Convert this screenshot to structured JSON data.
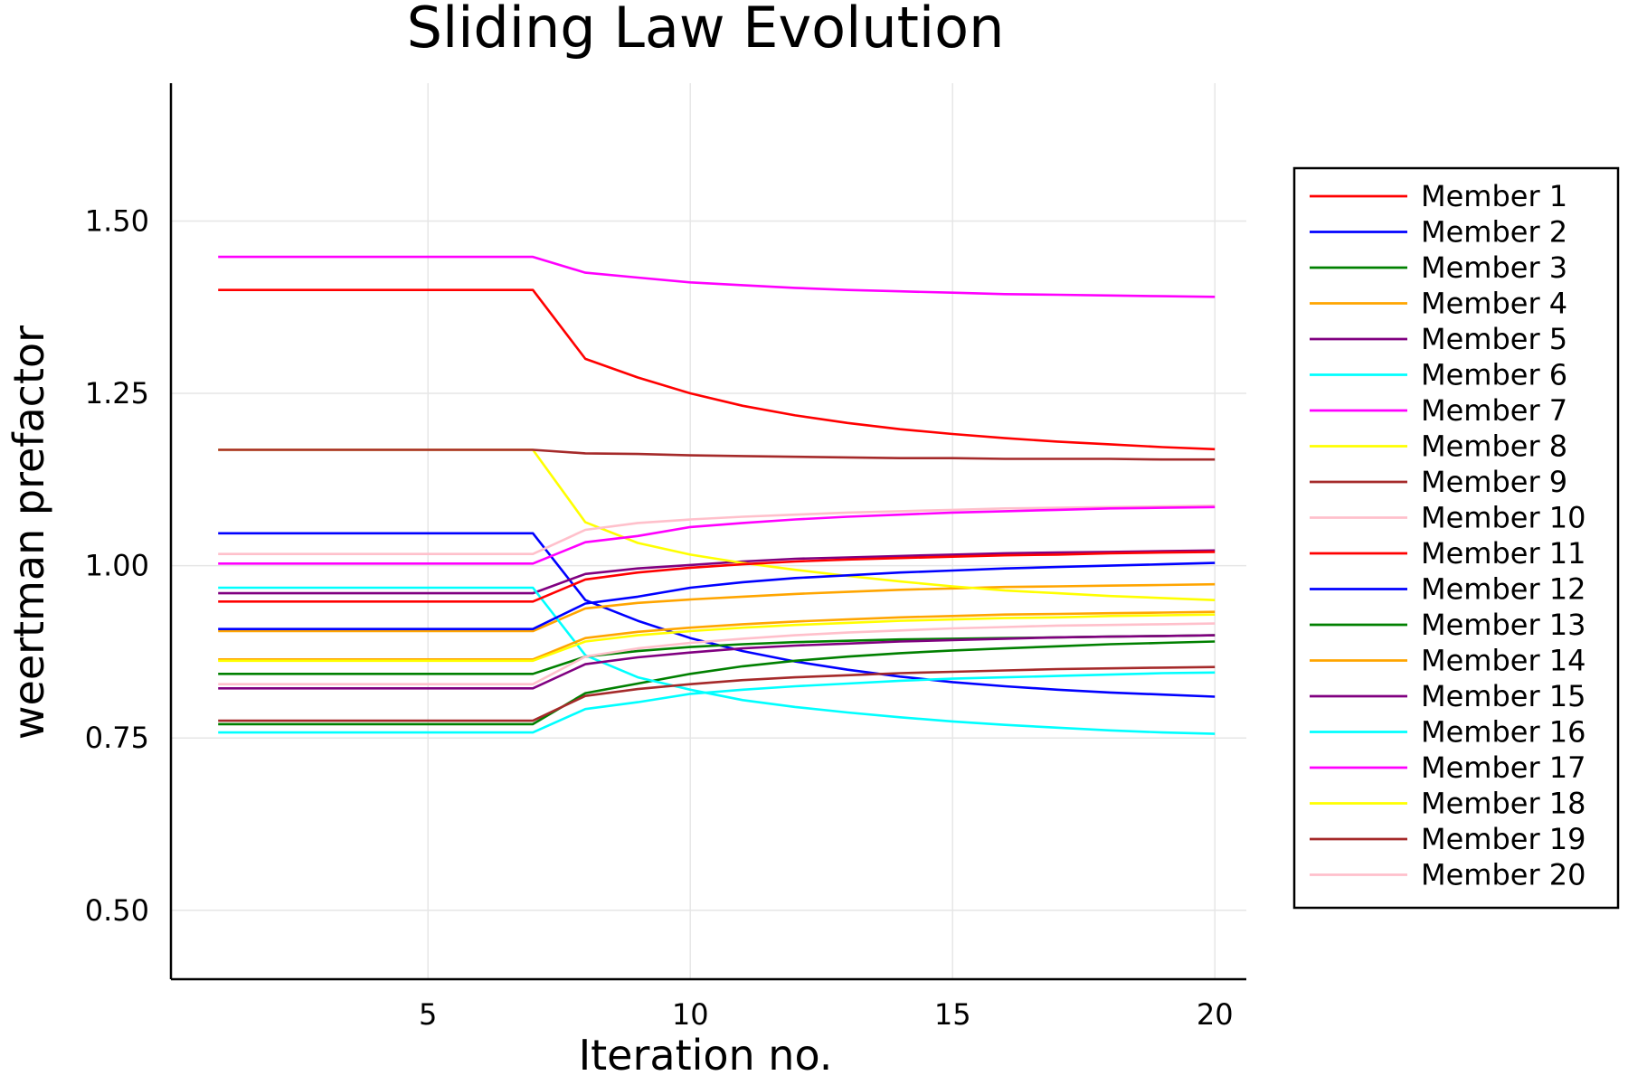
{
  "chart_data": {
    "type": "line",
    "title": "Sliding Law Evolution",
    "xlabel": "Iteration no.",
    "ylabel": "weertman prefactor",
    "xlim": [
      0.1,
      20.6
    ],
    "ylim": [
      0.4,
      1.7
    ],
    "xticks": [
      5,
      10,
      15,
      20
    ],
    "xtick_labels": [
      "5",
      "10",
      "15",
      "20"
    ],
    "yticks": [
      0.5,
      0.75,
      1.0,
      1.25,
      1.5
    ],
    "ytick_labels": [
      "0.50",
      "0.75",
      "1.00",
      "1.25",
      "1.50"
    ],
    "grid": true,
    "legend_position": "right",
    "x": [
      1,
      2,
      3,
      4,
      5,
      6,
      7,
      8,
      9,
      10,
      11,
      12,
      13,
      14,
      15,
      16,
      17,
      18,
      19,
      20
    ],
    "series": [
      {
        "name": "Member 1",
        "color": "#ff0000",
        "values": [
          1.4,
          1.4,
          1.4,
          1.4,
          1.4,
          1.4,
          1.4,
          1.3,
          1.273,
          1.25,
          1.232,
          1.218,
          1.207,
          1.198,
          1.191,
          1.185,
          1.18,
          1.176,
          1.172,
          1.169
        ]
      },
      {
        "name": "Member 2",
        "color": "#0000ff",
        "values": [
          1.047,
          1.047,
          1.047,
          1.047,
          1.047,
          1.047,
          1.047,
          0.95,
          0.92,
          0.895,
          0.876,
          0.861,
          0.849,
          0.839,
          0.831,
          0.825,
          0.82,
          0.816,
          0.813,
          0.81
        ]
      },
      {
        "name": "Member 3",
        "color": "#008000",
        "values": [
          0.77,
          0.77,
          0.77,
          0.77,
          0.77,
          0.77,
          0.77,
          0.815,
          0.829,
          0.843,
          0.854,
          0.862,
          0.868,
          0.873,
          0.877,
          0.88,
          0.883,
          0.886,
          0.888,
          0.89
        ]
      },
      {
        "name": "Member 4",
        "color": "#ffa500",
        "values": [
          0.905,
          0.905,
          0.905,
          0.905,
          0.905,
          0.905,
          0.905,
          0.938,
          0.946,
          0.951,
          0.955,
          0.959,
          0.962,
          0.965,
          0.967,
          0.969,
          0.97,
          0.971,
          0.972,
          0.973
        ]
      },
      {
        "name": "Member 5",
        "color": "#800080",
        "values": [
          0.96,
          0.96,
          0.96,
          0.96,
          0.96,
          0.96,
          0.96,
          0.988,
          0.996,
          1.001,
          1.006,
          1.01,
          1.012,
          1.014,
          1.016,
          1.018,
          1.019,
          1.02,
          1.021,
          1.022
        ]
      },
      {
        "name": "Member 6",
        "color": "#00ffff",
        "values": [
          0.968,
          0.968,
          0.968,
          0.968,
          0.968,
          0.968,
          0.968,
          0.87,
          0.838,
          0.82,
          0.805,
          0.795,
          0.787,
          0.78,
          0.774,
          0.769,
          0.765,
          0.761,
          0.758,
          0.756
        ]
      },
      {
        "name": "Member 7",
        "color": "#ff00ff",
        "values": [
          1.448,
          1.448,
          1.448,
          1.448,
          1.448,
          1.448,
          1.448,
          1.425,
          1.418,
          1.411,
          1.407,
          1.403,
          1.4,
          1.398,
          1.396,
          1.394,
          1.393,
          1.392,
          1.391,
          1.39
        ]
      },
      {
        "name": "Member 8",
        "color": "#ffff00",
        "values": [
          1.168,
          1.168,
          1.168,
          1.168,
          1.168,
          1.168,
          1.168,
          1.063,
          1.033,
          1.016,
          1.004,
          0.994,
          0.985,
          0.977,
          0.97,
          0.964,
          0.96,
          0.956,
          0.953,
          0.95
        ]
      },
      {
        "name": "Member 9",
        "color": "#a52a2a",
        "values": [
          1.168,
          1.168,
          1.168,
          1.168,
          1.168,
          1.168,
          1.168,
          1.163,
          1.162,
          1.16,
          1.159,
          1.158,
          1.157,
          1.156,
          1.156,
          1.155,
          1.155,
          1.155,
          1.154,
          1.154
        ]
      },
      {
        "name": "Member 10",
        "color": "#ffc0cb",
        "values": [
          1.017,
          1.017,
          1.017,
          1.017,
          1.017,
          1.017,
          1.017,
          1.052,
          1.062,
          1.067,
          1.071,
          1.074,
          1.077,
          1.079,
          1.081,
          1.083,
          1.084,
          1.085,
          1.086,
          1.087
        ]
      },
      {
        "name": "Member 11",
        "color": "#ff0000",
        "values": [
          0.948,
          0.948,
          0.948,
          0.948,
          0.948,
          0.948,
          0.948,
          0.98,
          0.99,
          0.997,
          1.002,
          1.006,
          1.009,
          1.011,
          1.013,
          1.015,
          1.016,
          1.018,
          1.019,
          1.02
        ]
      },
      {
        "name": "Member 12",
        "color": "#0000ff",
        "values": [
          0.908,
          0.908,
          0.908,
          0.908,
          0.908,
          0.908,
          0.908,
          0.945,
          0.955,
          0.968,
          0.976,
          0.982,
          0.986,
          0.99,
          0.993,
          0.996,
          0.998,
          1.0,
          1.002,
          1.004
        ]
      },
      {
        "name": "Member 13",
        "color": "#008000",
        "values": [
          0.843,
          0.843,
          0.843,
          0.843,
          0.843,
          0.843,
          0.843,
          0.868,
          0.876,
          0.882,
          0.886,
          0.889,
          0.891,
          0.893,
          0.894,
          0.895,
          0.896,
          0.897,
          0.898,
          0.899
        ]
      },
      {
        "name": "Member 14",
        "color": "#ffa500",
        "values": [
          0.864,
          0.864,
          0.864,
          0.864,
          0.864,
          0.864,
          0.864,
          0.895,
          0.904,
          0.91,
          0.915,
          0.919,
          0.922,
          0.925,
          0.927,
          0.929,
          0.93,
          0.931,
          0.932,
          0.933
        ]
      },
      {
        "name": "Member 15",
        "color": "#800080",
        "values": [
          0.822,
          0.822,
          0.822,
          0.822,
          0.822,
          0.822,
          0.822,
          0.857,
          0.867,
          0.874,
          0.88,
          0.884,
          0.887,
          0.89,
          0.892,
          0.894,
          0.896,
          0.897,
          0.898,
          0.899
        ]
      },
      {
        "name": "Member 16",
        "color": "#00ffff",
        "values": [
          0.758,
          0.758,
          0.758,
          0.758,
          0.758,
          0.758,
          0.758,
          0.792,
          0.802,
          0.814,
          0.82,
          0.825,
          0.829,
          0.833,
          0.836,
          0.838,
          0.84,
          0.842,
          0.844,
          0.845
        ]
      },
      {
        "name": "Member 17",
        "color": "#ff00ff",
        "values": [
          1.003,
          1.003,
          1.003,
          1.003,
          1.003,
          1.003,
          1.003,
          1.034,
          1.043,
          1.056,
          1.062,
          1.067,
          1.071,
          1.074,
          1.077,
          1.079,
          1.081,
          1.083,
          1.084,
          1.085
        ]
      },
      {
        "name": "Member 18",
        "color": "#ffff00",
        "values": [
          0.862,
          0.862,
          0.862,
          0.862,
          0.862,
          0.862,
          0.862,
          0.89,
          0.899,
          0.905,
          0.91,
          0.914,
          0.917,
          0.92,
          0.922,
          0.924,
          0.925,
          0.927,
          0.928,
          0.929
        ]
      },
      {
        "name": "Member 19",
        "color": "#a52a2a",
        "values": [
          0.775,
          0.775,
          0.775,
          0.775,
          0.775,
          0.775,
          0.775,
          0.811,
          0.821,
          0.828,
          0.834,
          0.838,
          0.841,
          0.844,
          0.846,
          0.848,
          0.85,
          0.851,
          0.852,
          0.853
        ]
      },
      {
        "name": "Member 20",
        "color": "#ffc0cb",
        "values": [
          0.828,
          0.828,
          0.828,
          0.828,
          0.828,
          0.828,
          0.828,
          0.868,
          0.88,
          0.888,
          0.894,
          0.899,
          0.903,
          0.906,
          0.909,
          0.911,
          0.913,
          0.914,
          0.915,
          0.916
        ]
      }
    ]
  }
}
